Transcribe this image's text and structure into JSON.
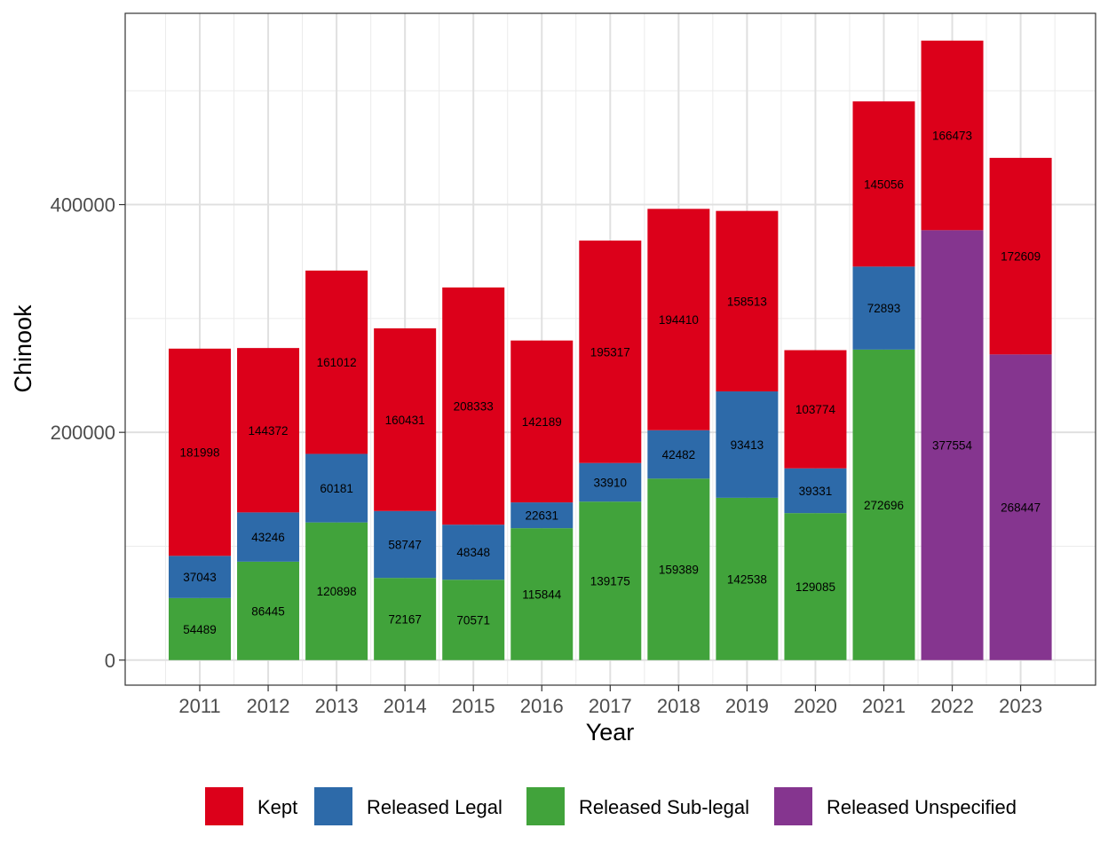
{
  "chart_data": {
    "type": "bar",
    "stacked": true,
    "title": "",
    "xlabel": "Year",
    "ylabel": "Chinook",
    "categories": [
      "2011",
      "2012",
      "2013",
      "2014",
      "2015",
      "2016",
      "2017",
      "2018",
      "2019",
      "2020",
      "2021",
      "2022",
      "2023"
    ],
    "series": [
      {
        "name": "Released Sub-legal",
        "color": "#41a33b",
        "values": [
          54489,
          86445,
          120898,
          72167,
          70571,
          115844,
          139175,
          159389,
          142538,
          129085,
          272696,
          null,
          null
        ]
      },
      {
        "name": "Released Legal",
        "color": "#2d6aa9",
        "values": [
          37043,
          43246,
          60181,
          58747,
          48348,
          22631,
          33910,
          42482,
          93413,
          39331,
          72893,
          null,
          null
        ]
      },
      {
        "name": "Released Unspecified",
        "color": "#85358f",
        "values": [
          null,
          null,
          null,
          null,
          null,
          null,
          null,
          null,
          null,
          null,
          null,
          377554,
          268447
        ]
      },
      {
        "name": "Kept",
        "color": "#dc001a",
        "values": [
          181998,
          144372,
          161012,
          160431,
          208333,
          142189,
          195317,
          194410,
          158513,
          103774,
          145056,
          166473,
          172609
        ]
      }
    ],
    "ylim": [
      -22000,
      568000
    ],
    "yticks": [
      0,
      200000,
      400000
    ],
    "grid": true,
    "legend": {
      "position": "bottom",
      "order": [
        "Kept",
        "Released Legal",
        "Released Sub-legal",
        "Released Unspecified"
      ]
    }
  }
}
